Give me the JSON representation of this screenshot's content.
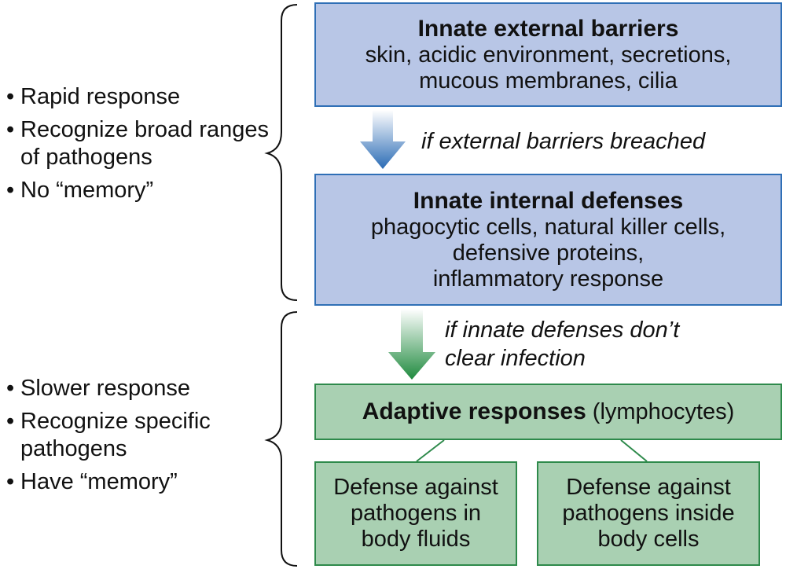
{
  "innate_summary": {
    "bullets": [
      "Rapid response",
      "Recognize broad ranges of pathogens",
      "No “memory”"
    ]
  },
  "adaptive_summary": {
    "bullets": [
      "Slower response",
      "Recognize specific pathogens",
      "Have “memory”"
    ]
  },
  "external_barriers": {
    "title": "Innate external barriers",
    "lines": [
      "skin, acidic environment, secretions,",
      "mucous membranes, cilia"
    ]
  },
  "arrow_note_1": "if external barriers breached",
  "internal_defenses": {
    "title": "Innate internal defenses",
    "lines": [
      "phagocytic cells, natural killer cells,",
      "defensive proteins,",
      "inflammatory response"
    ]
  },
  "arrow_note_2": [
    "if innate defenses don’t",
    "clear infection"
  ],
  "adaptive": {
    "title": "Adaptive responses",
    "subtitle": "(lymphocytes)"
  },
  "body_fluids": {
    "lines": [
      "Defense against",
      "pathogens in",
      "body fluids"
    ]
  },
  "body_cells": {
    "lines": [
      "Defense against",
      "pathogens inside",
      "body cells"
    ]
  },
  "colors": {
    "innate_fill": "#b8c6e6",
    "innate_border": "#2f6fb6",
    "adaptive_fill": "#a9d0b2",
    "adaptive_border": "#2e8a4b"
  }
}
